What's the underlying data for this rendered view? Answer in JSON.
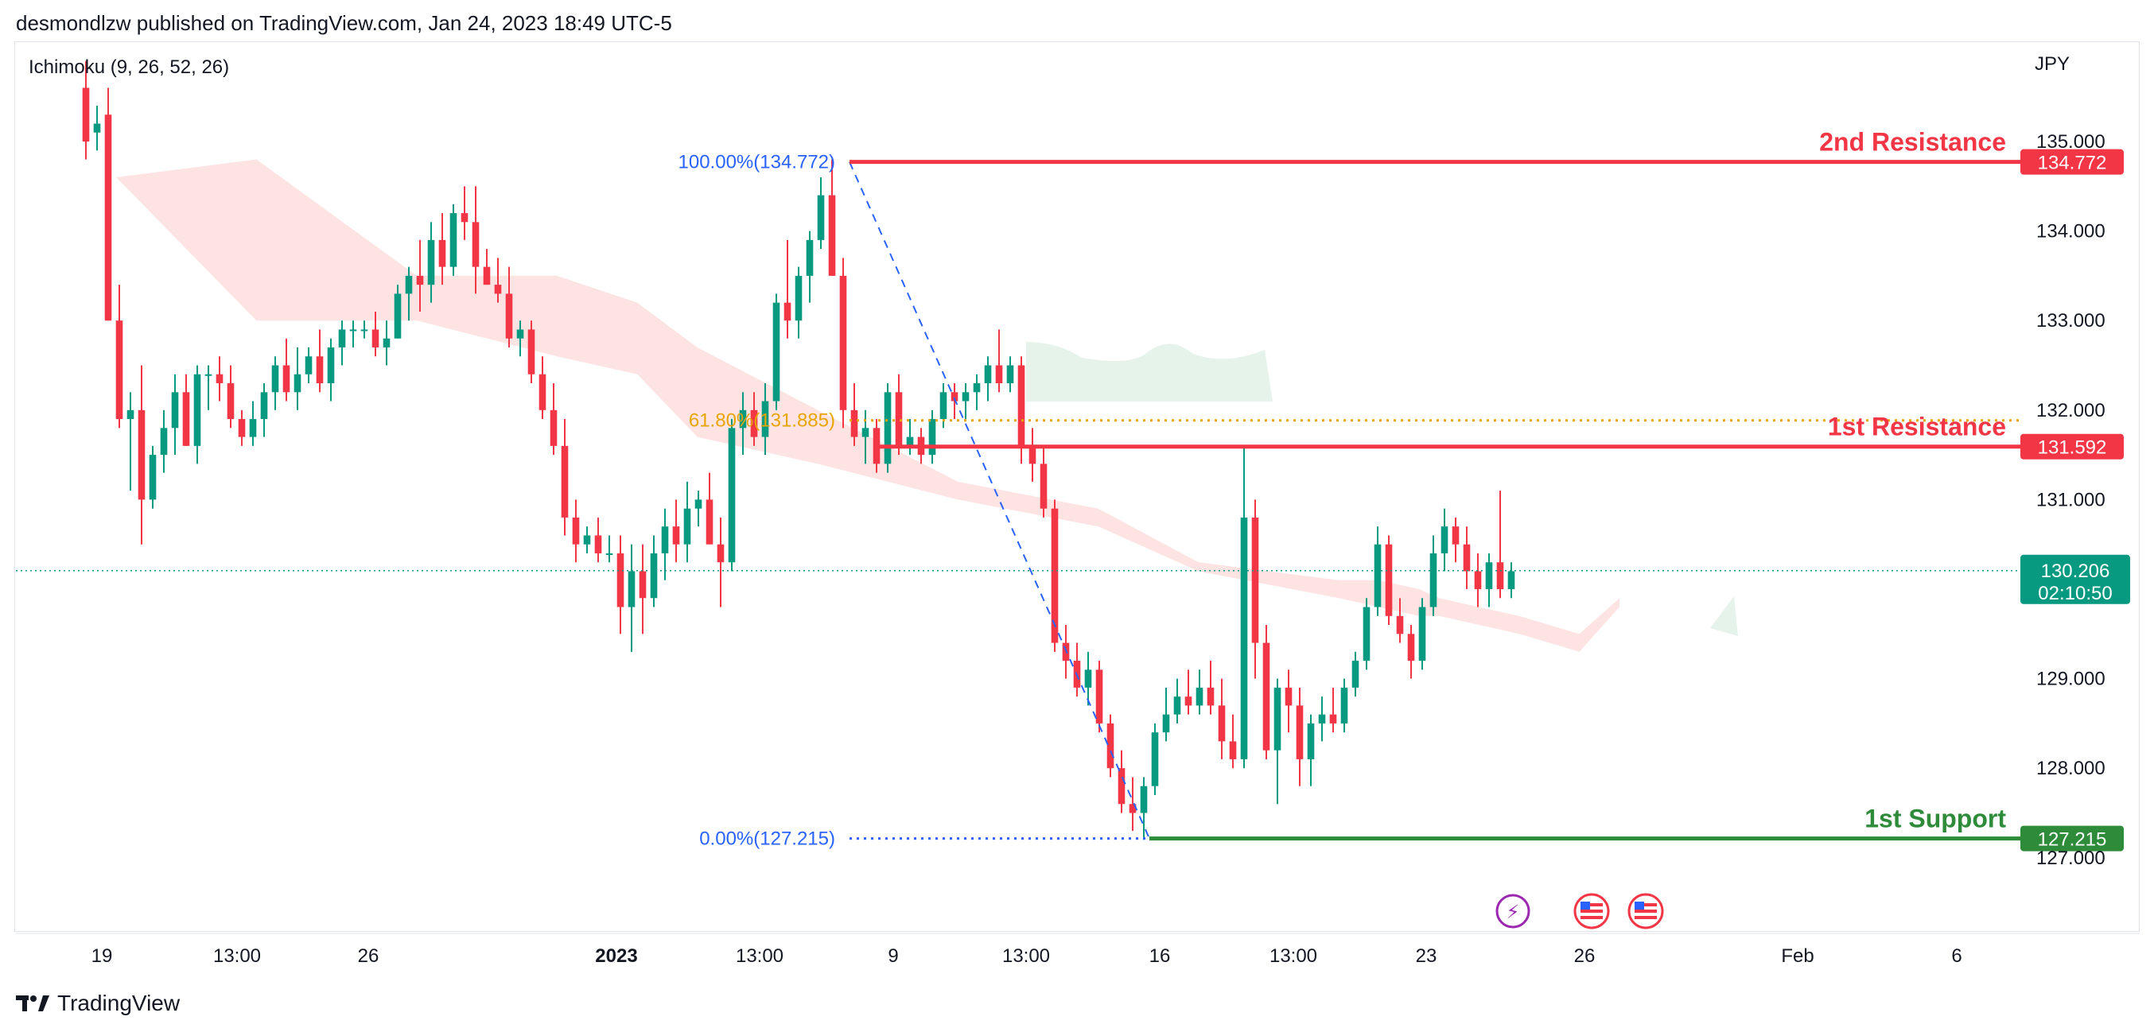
{
  "header": {
    "published": "desmondlzw published on TradingView.com, Jan 24, 2023 18:49 UTC-5"
  },
  "footer": {
    "brand": "TradingView"
  },
  "colors": {
    "up": "#089981",
    "down": "#f23645",
    "cloud_bear": "#fde4e3",
    "cloud_bull": "#e6f3ea",
    "resistance": "#f23645",
    "support": "#2e8b3a",
    "fib": "#2962ff",
    "fib_618": "#e8a500"
  },
  "chart_data": {
    "type": "candlestick",
    "symbol_currency": "JPY",
    "indicator": "Ichimoku (9, 26, 52, 26)",
    "y_axis": {
      "ticks": [
        "135.000",
        "134.000",
        "133.000",
        "132.000",
        "131.000",
        "130.000",
        "129.000",
        "128.000",
        "127.000"
      ],
      "range": [
        126.7,
        135.5
      ]
    },
    "x_axis": {
      "ticks": [
        "19",
        "13:00",
        "26",
        "2023",
        "13:00",
        "9",
        "13:00",
        "16",
        "13:00",
        "23",
        "26",
        "Feb",
        "6"
      ]
    },
    "levels": [
      {
        "name": "2nd Resistance",
        "price": 134.772,
        "label": "134.772",
        "kind": "resistance"
      },
      {
        "name": "1st Resistance",
        "price": 131.592,
        "label": "131.592",
        "kind": "resistance"
      },
      {
        "name": "1st Support",
        "price": 127.215,
        "label": "127.215",
        "kind": "support"
      }
    ],
    "fibonacci": [
      {
        "label": "100.00%(134.772)",
        "price": 134.772
      },
      {
        "label": "61.80%(131.885)",
        "price": 131.885
      },
      {
        "label": "0.00%(127.215)",
        "price": 127.215
      }
    ],
    "last_price": {
      "label": "130.206",
      "countdown": "02:10:50",
      "price": 130.206
    },
    "candles": [
      [
        135.6,
        135.9,
        134.8,
        135.0
      ],
      [
        135.1,
        135.4,
        134.9,
        135.2
      ],
      [
        135.3,
        135.6,
        133.0,
        133.0
      ],
      [
        133.0,
        133.4,
        131.8,
        131.9
      ],
      [
        131.9,
        132.2,
        131.1,
        132.0
      ],
      [
        132.0,
        132.5,
        130.5,
        131.0
      ],
      [
        131.0,
        131.6,
        130.9,
        131.5
      ],
      [
        131.5,
        132.0,
        131.3,
        131.8
      ],
      [
        131.8,
        132.4,
        131.5,
        132.2
      ],
      [
        132.2,
        132.4,
        131.6,
        131.6
      ],
      [
        131.6,
        132.5,
        131.4,
        132.4
      ],
      [
        132.4,
        132.5,
        132.0,
        132.4
      ],
      [
        132.4,
        132.6,
        132.1,
        132.3
      ],
      [
        132.3,
        132.5,
        131.8,
        131.9
      ],
      [
        131.9,
        132.0,
        131.6,
        131.7
      ],
      [
        131.7,
        132.1,
        131.6,
        131.9
      ],
      [
        131.9,
        132.3,
        131.7,
        132.2
      ],
      [
        132.2,
        132.6,
        132.0,
        132.5
      ],
      [
        132.5,
        132.8,
        132.1,
        132.2
      ],
      [
        132.2,
        132.7,
        132.0,
        132.4
      ],
      [
        132.4,
        132.7,
        132.3,
        132.6
      ],
      [
        132.6,
        132.9,
        132.2,
        132.3
      ],
      [
        132.3,
        132.8,
        132.1,
        132.7
      ],
      [
        132.7,
        133.0,
        132.5,
        132.9
      ],
      [
        132.9,
        133.0,
        132.7,
        132.9
      ],
      [
        132.9,
        133.0,
        132.8,
        132.9
      ],
      [
        132.9,
        133.1,
        132.6,
        132.7
      ],
      [
        132.7,
        133.0,
        132.5,
        132.8
      ],
      [
        132.8,
        133.4,
        132.8,
        133.3
      ],
      [
        133.3,
        133.6,
        133.0,
        133.5
      ],
      [
        133.5,
        133.9,
        133.1,
        133.4
      ],
      [
        133.4,
        134.1,
        133.2,
        133.9
      ],
      [
        133.9,
        134.2,
        133.4,
        133.6
      ],
      [
        133.6,
        134.3,
        133.5,
        134.2
      ],
      [
        134.2,
        134.5,
        133.9,
        134.1
      ],
      [
        134.1,
        134.5,
        133.3,
        133.6
      ],
      [
        133.6,
        133.8,
        133.4,
        133.4
      ],
      [
        133.4,
        133.7,
        133.2,
        133.3
      ],
      [
        133.3,
        133.6,
        132.7,
        132.8
      ],
      [
        132.8,
        133.0,
        132.6,
        132.9
      ],
      [
        132.9,
        133.0,
        132.3,
        132.4
      ],
      [
        132.4,
        132.6,
        131.9,
        132.0
      ],
      [
        132.0,
        132.3,
        131.5,
        131.6
      ],
      [
        131.6,
        131.9,
        130.6,
        130.8
      ],
      [
        130.8,
        131.0,
        130.3,
        130.5
      ],
      [
        130.5,
        130.7,
        130.4,
        130.6
      ],
      [
        130.6,
        130.8,
        130.3,
        130.4
      ],
      [
        130.4,
        130.6,
        130.3,
        130.4
      ],
      [
        130.4,
        130.6,
        129.5,
        129.8
      ],
      [
        129.8,
        130.5,
        129.3,
        130.2
      ],
      [
        130.2,
        130.5,
        129.5,
        129.9
      ],
      [
        129.9,
        130.6,
        129.8,
        130.4
      ],
      [
        130.4,
        130.9,
        130.1,
        130.7
      ],
      [
        130.7,
        131.0,
        130.3,
        130.5
      ],
      [
        130.5,
        131.2,
        130.3,
        130.9
      ],
      [
        130.9,
        131.1,
        130.7,
        131.0
      ],
      [
        131.0,
        131.3,
        130.5,
        130.5
      ],
      [
        130.5,
        130.8,
        129.8,
        130.3
      ],
      [
        130.3,
        131.9,
        130.2,
        131.8
      ],
      [
        131.8,
        132.2,
        131.5,
        132.0
      ],
      [
        132.0,
        132.2,
        131.6,
        131.7
      ],
      [
        131.7,
        132.3,
        131.5,
        132.1
      ],
      [
        132.1,
        133.3,
        132.0,
        133.2
      ],
      [
        133.2,
        133.9,
        132.8,
        133.0
      ],
      [
        133.0,
        133.6,
        132.8,
        133.5
      ],
      [
        133.5,
        134.0,
        133.2,
        133.9
      ],
      [
        133.9,
        134.6,
        133.8,
        134.4
      ],
      [
        134.4,
        134.8,
        133.5,
        133.5
      ],
      [
        133.5,
        133.7,
        131.8,
        132.0
      ],
      [
        132.0,
        132.3,
        131.6,
        131.7
      ],
      [
        131.7,
        132.0,
        131.4,
        131.8
      ],
      [
        131.8,
        131.9,
        131.3,
        131.4
      ],
      [
        131.4,
        132.3,
        131.3,
        132.2
      ],
      [
        132.2,
        132.4,
        131.5,
        131.6
      ],
      [
        131.6,
        131.9,
        131.5,
        131.7
      ],
      [
        131.7,
        131.8,
        131.4,
        131.5
      ],
      [
        131.5,
        132.0,
        131.4,
        131.9
      ],
      [
        131.9,
        132.3,
        131.8,
        132.2
      ],
      [
        132.2,
        132.3,
        131.9,
        132.1
      ],
      [
        132.1,
        132.3,
        131.9,
        132.2
      ],
      [
        132.2,
        132.4,
        132.0,
        132.3
      ],
      [
        132.3,
        132.6,
        132.1,
        132.5
      ],
      [
        132.5,
        132.9,
        132.2,
        132.3
      ],
      [
        132.3,
        132.6,
        132.2,
        132.5
      ],
      [
        132.5,
        132.6,
        131.4,
        131.6
      ],
      [
        131.6,
        131.8,
        131.2,
        131.4
      ],
      [
        131.4,
        131.6,
        130.8,
        130.9
      ],
      [
        130.9,
        131.0,
        129.3,
        129.4
      ],
      [
        129.4,
        129.6,
        129.0,
        129.2
      ],
      [
        129.2,
        129.4,
        128.8,
        128.9
      ],
      [
        128.9,
        129.3,
        128.7,
        129.1
      ],
      [
        129.1,
        129.2,
        128.4,
        128.5
      ],
      [
        128.5,
        128.6,
        127.9,
        128.0
      ],
      [
        128.0,
        128.2,
        127.5,
        127.6
      ],
      [
        127.6,
        127.9,
        127.3,
        127.5
      ],
      [
        127.5,
        127.9,
        127.2,
        127.8
      ],
      [
        127.8,
        128.5,
        127.7,
        128.4
      ],
      [
        128.4,
        128.9,
        128.3,
        128.6
      ],
      [
        128.6,
        129.0,
        128.5,
        128.8
      ],
      [
        128.8,
        129.1,
        128.6,
        128.7
      ],
      [
        128.7,
        129.1,
        128.6,
        128.9
      ],
      [
        128.9,
        129.2,
        128.6,
        128.7
      ],
      [
        128.7,
        129.0,
        128.1,
        128.3
      ],
      [
        128.3,
        128.6,
        128.0,
        128.1
      ],
      [
        128.1,
        131.6,
        128.0,
        130.8
      ],
      [
        130.8,
        131.0,
        129.0,
        129.4
      ],
      [
        129.4,
        129.6,
        128.1,
        128.2
      ],
      [
        128.2,
        129.0,
        127.6,
        128.9
      ],
      [
        128.9,
        129.1,
        128.4,
        128.7
      ],
      [
        128.7,
        128.9,
        127.8,
        128.1
      ],
      [
        128.1,
        128.6,
        127.8,
        128.5
      ],
      [
        128.5,
        128.8,
        128.3,
        128.6
      ],
      [
        128.6,
        128.9,
        128.4,
        128.5
      ],
      [
        128.5,
        129.0,
        128.4,
        128.9
      ],
      [
        128.9,
        129.3,
        128.8,
        129.2
      ],
      [
        129.2,
        129.9,
        129.1,
        129.8
      ],
      [
        129.8,
        130.7,
        129.7,
        130.5
      ],
      [
        130.5,
        130.6,
        129.6,
        129.7
      ],
      [
        129.7,
        129.9,
        129.4,
        129.5
      ],
      [
        129.5,
        129.6,
        129.0,
        129.2
      ],
      [
        129.2,
        129.9,
        129.1,
        129.8
      ],
      [
        129.8,
        130.6,
        129.7,
        130.4
      ],
      [
        130.4,
        130.9,
        130.2,
        130.7
      ],
      [
        130.7,
        130.8,
        130.3,
        130.5
      ],
      [
        130.5,
        130.7,
        130.0,
        130.2
      ],
      [
        130.2,
        130.4,
        129.8,
        130.0
      ],
      [
        130.0,
        130.4,
        129.8,
        130.3
      ],
      [
        130.3,
        131.1,
        129.9,
        130.0
      ],
      [
        130.0,
        130.3,
        129.9,
        130.2
      ]
    ],
    "cloud": {
      "bear_upper": [
        [
          0,
          134.6
        ],
        [
          0.05,
          134.6
        ],
        [
          0.12,
          134.8
        ],
        [
          0.2,
          133.5
        ],
        [
          0.27,
          133.5
        ],
        [
          0.31,
          133.2
        ],
        [
          0.34,
          132.7
        ],
        [
          0.4,
          132.0
        ],
        [
          0.47,
          131.2
        ],
        [
          0.54,
          130.9
        ],
        [
          0.59,
          130.3
        ],
        [
          0.66,
          130.1
        ],
        [
          0.68,
          130.1
        ],
        [
          0.7,
          130.0
        ],
        [
          0.71,
          129.9
        ],
        [
          0.75,
          129.7
        ],
        [
          0.78,
          129.5
        ],
        [
          0.8,
          129.9
        ]
      ],
      "bear_lower": [
        [
          0,
          134.6
        ],
        [
          0.05,
          134.6
        ],
        [
          0.12,
          133.0
        ],
        [
          0.2,
          133.0
        ],
        [
          0.27,
          132.6
        ],
        [
          0.31,
          132.4
        ],
        [
          0.34,
          131.7
        ],
        [
          0.4,
          131.4
        ],
        [
          0.47,
          131.0
        ],
        [
          0.54,
          130.7
        ],
        [
          0.59,
          130.2
        ],
        [
          0.66,
          129.9
        ],
        [
          0.68,
          129.8
        ],
        [
          0.7,
          129.7
        ],
        [
          0.71,
          129.7
        ],
        [
          0.75,
          129.5
        ],
        [
          0.78,
          129.3
        ],
        [
          0.8,
          129.8
        ]
      ]
    }
  }
}
